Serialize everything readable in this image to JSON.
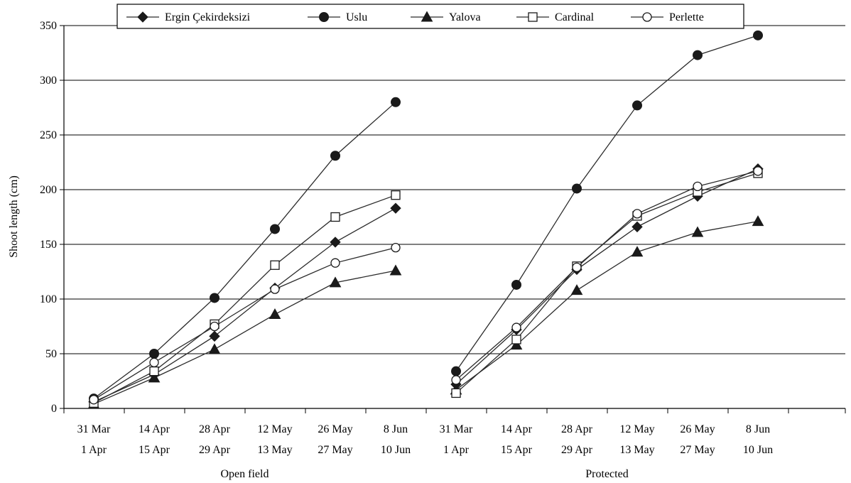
{
  "chart_data": {
    "type": "line",
    "ylabel": "Shoot length (cm)",
    "ylim": [
      0,
      350
    ],
    "yticks": [
      0,
      50,
      100,
      150,
      200,
      250,
      300,
      350
    ],
    "grid": "horizontal",
    "legend_position": "top",
    "categories": [
      {
        "line1": "31 Mar",
        "line2": "1 Apr"
      },
      {
        "line1": "14 Apr",
        "line2": "15 Apr"
      },
      {
        "line1": "28 Apr",
        "line2": "29 Apr"
      },
      {
        "line1": "12 May",
        "line2": "13 May"
      },
      {
        "line1": "26 May",
        "line2": "27 May"
      },
      {
        "line1": "8 Jun",
        "line2": "10 Jun"
      }
    ],
    "groups": [
      {
        "label": "Open field",
        "series": [
          {
            "name": "Ergin Çekirdeksizi",
            "marker": "diamond-filled",
            "values": [
              6,
              31,
              66,
              110,
              152,
              183
            ]
          },
          {
            "name": "Uslu",
            "marker": "circle-filled",
            "values": [
              9,
              50,
              101,
              164,
              231,
              280
            ]
          },
          {
            "name": "Yalova",
            "marker": "triangle-filled",
            "values": [
              4,
              28,
              54,
              86,
              115,
              126
            ]
          },
          {
            "name": "Cardinal",
            "marker": "square-open",
            "values": [
              5,
              34,
              77,
              131,
              175,
              195
            ]
          },
          {
            "name": "Perlette",
            "marker": "circle-open",
            "values": [
              8,
              42,
              75,
              109,
              133,
              147
            ]
          }
        ]
      },
      {
        "label": "Protected",
        "series": [
          {
            "name": "Ergin Çekirdeksizi",
            "marker": "diamond-filled",
            "values": [
              22,
              72,
              127,
              166,
              194,
              219
            ]
          },
          {
            "name": "Uslu",
            "marker": "circle-filled",
            "values": [
              34,
              113,
              201,
              277,
              323,
              341
            ]
          },
          {
            "name": "Yalova",
            "marker": "triangle-filled",
            "values": [
              17,
              58,
              108,
              143,
              161,
              171
            ]
          },
          {
            "name": "Cardinal",
            "marker": "square-open",
            "values": [
              14,
              63,
              130,
              176,
              198,
              215
            ]
          },
          {
            "name": "Perlette",
            "marker": "circle-open",
            "values": [
              26,
              74,
              129,
              178,
              203,
              217
            ]
          }
        ]
      }
    ],
    "legend": [
      {
        "name": "Ergin Çekirdeksizi",
        "marker": "diamond-filled"
      },
      {
        "name": "Uslu",
        "marker": "circle-filled"
      },
      {
        "name": "Yalova",
        "marker": "triangle-filled"
      },
      {
        "name": "Cardinal",
        "marker": "square-open"
      },
      {
        "name": "Perlette",
        "marker": "circle-open"
      }
    ],
    "colors": {
      "line": "#2b2b2b",
      "grid": "#000000",
      "marker_fill": "#1a1a1a",
      "open_fill": "#ffffff"
    }
  }
}
